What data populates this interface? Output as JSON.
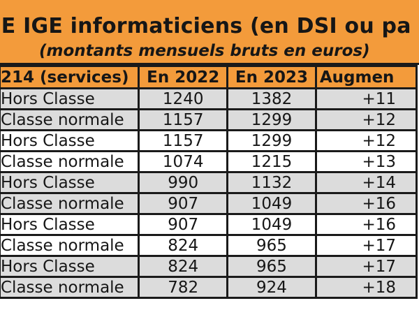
{
  "title": {
    "line1": "SE IGE informaticiens (en DSI ou pa",
    "line2": "(montants mensuels bruts en euros)"
  },
  "table": {
    "headers": [
      "214 (services)",
      "En 2022",
      "En 2023",
      "Augmen"
    ],
    "rows": [
      {
        "grade": "Hors Classe",
        "y2022": "1240",
        "y2023": "1382",
        "aug": "+11"
      },
      {
        "grade": "Classe normale",
        "y2022": "1157",
        "y2023": "1299",
        "aug": "+12"
      },
      {
        "grade": "Hors Classe",
        "y2022": "1157",
        "y2023": "1299",
        "aug": "+12"
      },
      {
        "grade": "Classe normale",
        "y2022": "1074",
        "y2023": "1215",
        "aug": "+13"
      },
      {
        "grade": "Hors Classe",
        "y2022": "990",
        "y2023": "1132",
        "aug": "+14"
      },
      {
        "grade": "Classe normale",
        "y2022": "907",
        "y2023": "1049",
        "aug": "+16"
      },
      {
        "grade": "Hors Classe",
        "y2022": "907",
        "y2023": "1049",
        "aug": "+16"
      },
      {
        "grade": "Classe normale",
        "y2022": "824",
        "y2023": "965",
        "aug": "+17"
      },
      {
        "grade": "Hors Classe",
        "y2022": "824",
        "y2023": "965",
        "aug": "+17"
      },
      {
        "grade": "Classe normale",
        "y2022": "782",
        "y2023": "924",
        "aug": "+18"
      }
    ]
  },
  "colors": {
    "header_orange": "#f39b3b",
    "row_grey": "#dcdcdc",
    "row_white": "#ffffff",
    "border": "#1a1a1a"
  }
}
